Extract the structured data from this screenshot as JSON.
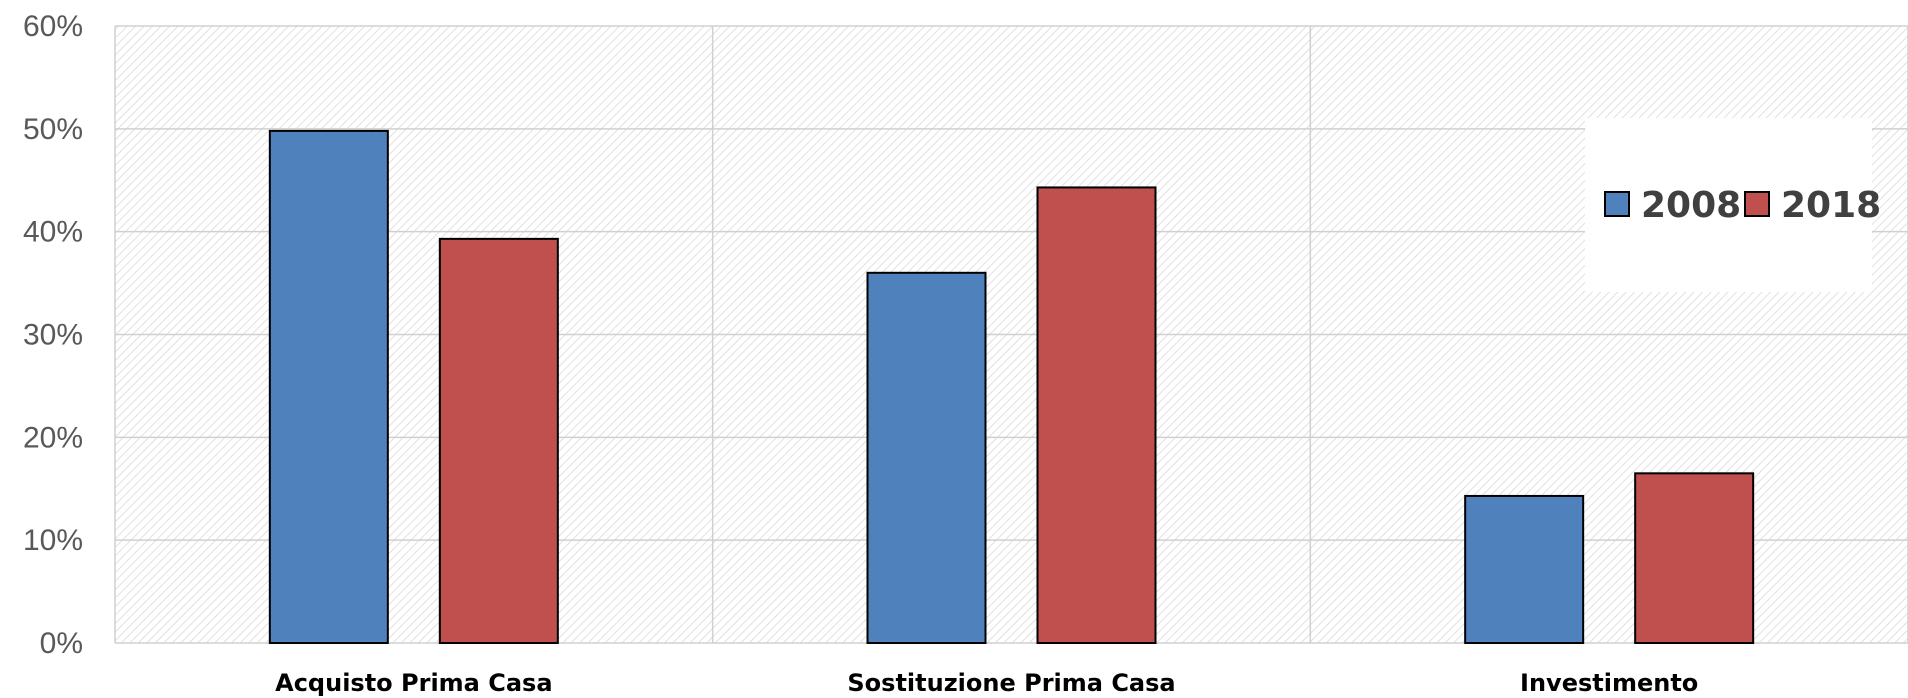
{
  "chart_data": {
    "type": "bar",
    "categories": [
      "Acquisto Prima Casa",
      "Sostituzione Prima Casa",
      "Investimento"
    ],
    "series": [
      {
        "name": "2008",
        "values": [
          49.8,
          36.0,
          14.3
        ],
        "color": "#4f81bd"
      },
      {
        "name": "2018",
        "values": [
          39.3,
          44.3,
          16.5
        ],
        "color": "#c0504d"
      }
    ],
    "ylim": [
      0,
      60
    ],
    "yticks": [
      "0%",
      "10%",
      "20%",
      "30%",
      "40%",
      "50%",
      "60%"
    ],
    "grid": true,
    "legend_position": "top-right",
    "xlabel": "",
    "ylabel": "",
    "title": ""
  }
}
